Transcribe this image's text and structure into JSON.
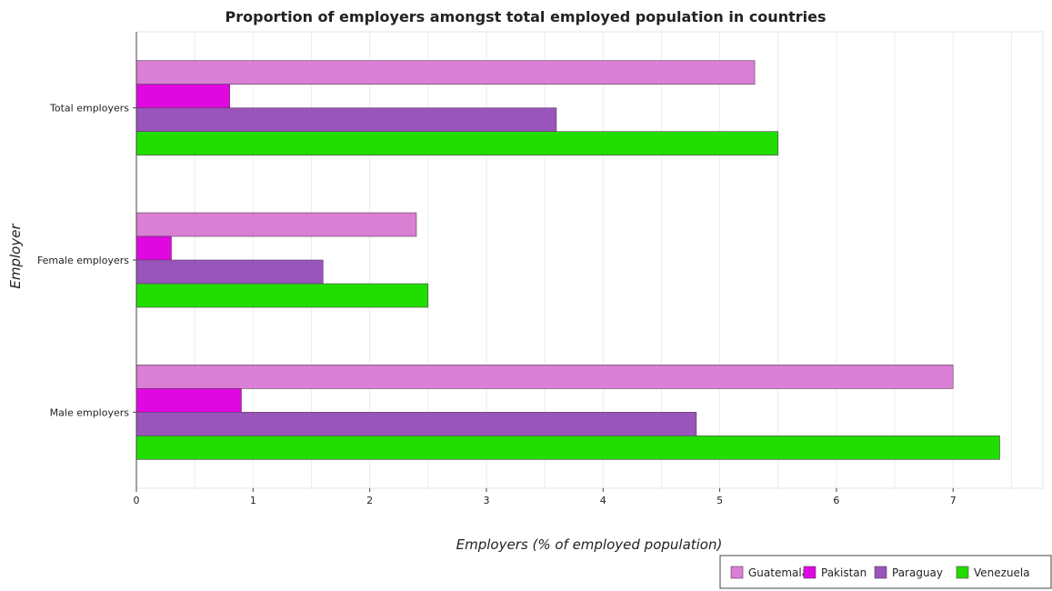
{
  "chart_data": {
    "type": "bar",
    "orientation": "horizontal",
    "title": "Proportion of employers amongst total employed population in countries",
    "xlabel": "Employers (% of employed population)",
    "ylabel": "Employer",
    "categories": [
      "Total employers",
      "Female employers",
      "Male employers"
    ],
    "xlim": [
      0,
      7.77
    ],
    "xticks": [
      "0",
      "1",
      "2",
      "3",
      "4",
      "5",
      "6",
      "7"
    ],
    "grid": true,
    "legend_position": "bottom-right",
    "series": [
      {
        "name": "Guatemala",
        "color": "#d97fd4",
        "values": [
          5.3,
          2.4,
          7.0
        ]
      },
      {
        "name": "Pakistan",
        "color": "#e008e0",
        "values": [
          0.8,
          0.3,
          0.9
        ]
      },
      {
        "name": "Paraguay",
        "color": "#9955bb",
        "values": [
          3.6,
          1.6,
          4.8
        ]
      },
      {
        "name": "Venezuela",
        "color": "#22dd00",
        "values": [
          5.5,
          2.5,
          7.4
        ]
      }
    ]
  }
}
